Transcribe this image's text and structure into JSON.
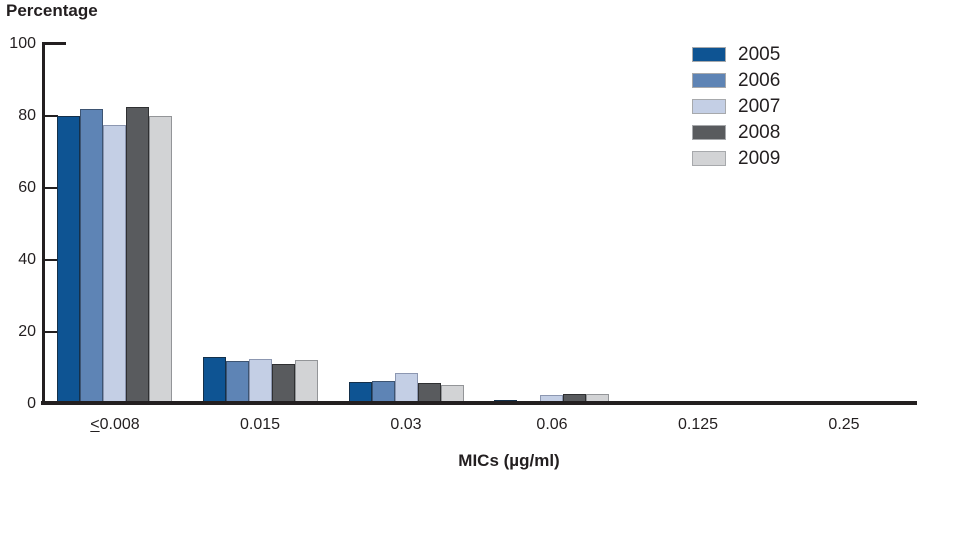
{
  "chart_data": {
    "type": "bar",
    "title": "Percentage",
    "xlabel": "MICs (µg/ml)",
    "categories": [
      "≤0.008",
      "0.015",
      "0.03",
      "0.06",
      "0.125",
      "0.25"
    ],
    "series": [
      {
        "name": "2005",
        "color": "#0E5493",
        "border": "#14304A",
        "values": [
          80,
          13,
          6,
          1.2,
          0.3,
          0
        ]
      },
      {
        "name": "2006",
        "color": "#5E84B5",
        "border": "#3D5472",
        "values": [
          82,
          12,
          6.3,
          0.4,
          0,
          0
        ]
      },
      {
        "name": "2007",
        "color": "#C4CFE5",
        "border": "#8C97B1",
        "values": [
          77.5,
          12.5,
          8.5,
          2.4,
          0,
          0
        ]
      },
      {
        "name": "2008",
        "color": "#595B5E",
        "border": "#2F3032",
        "values": [
          82.5,
          11,
          5.7,
          2.9,
          0.3,
          0
        ]
      },
      {
        "name": "2009",
        "color": "#D2D3D5",
        "border": "#939598",
        "values": [
          80,
          12.2,
          5.3,
          2.8,
          0.3,
          0
        ]
      }
    ],
    "ylim": [
      0,
      100
    ],
    "yticks": [
      0,
      20,
      40,
      60,
      80,
      100
    ],
    "grid": false,
    "legend_position": "top-right"
  },
  "colors": {
    "axis": "#231F20",
    "text": "#231F20",
    "legend_swatch_border": "#A7A9AC"
  }
}
